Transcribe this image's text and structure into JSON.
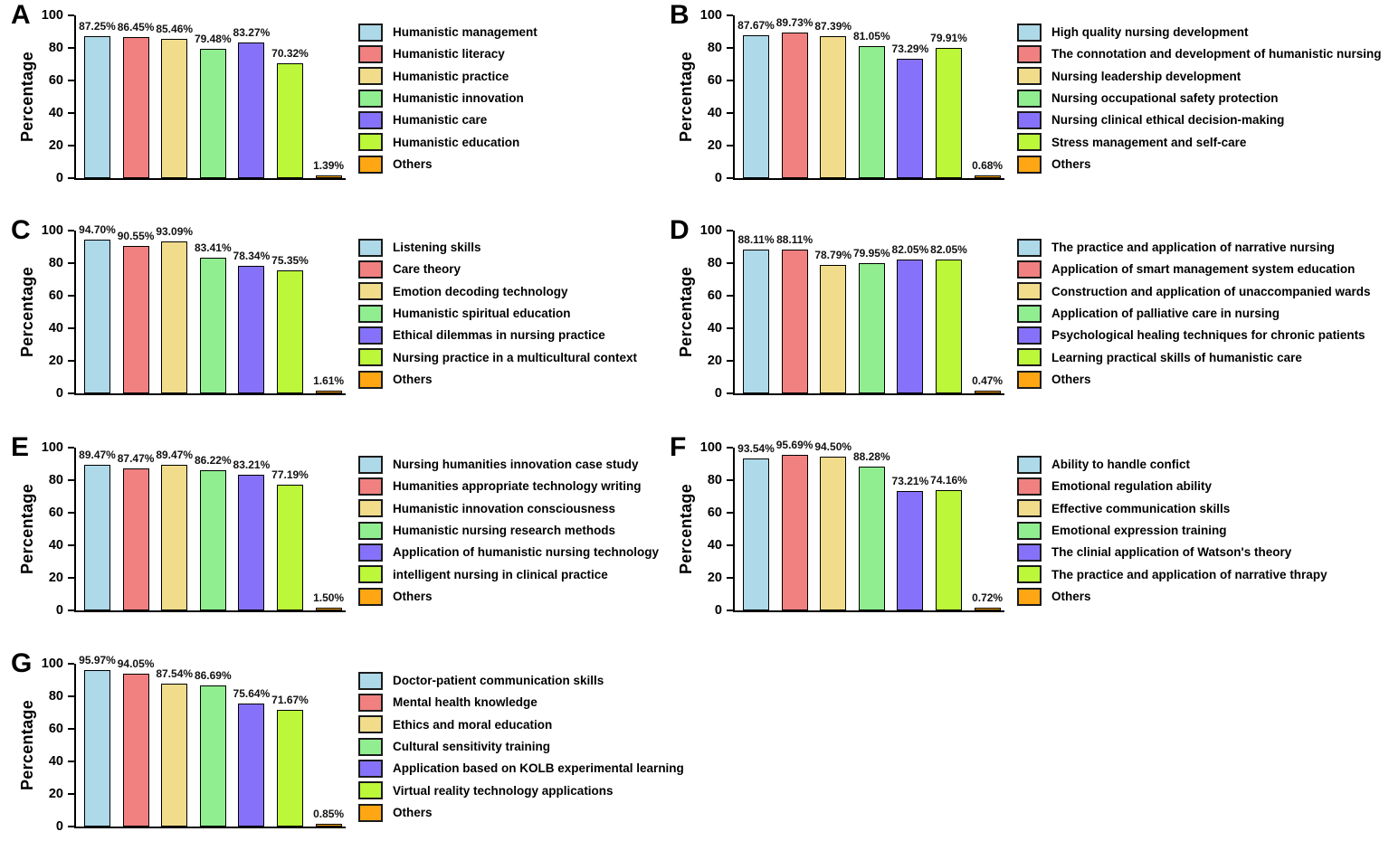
{
  "figure": {
    "ylabel": "Percentage",
    "yticks": [
      0,
      20,
      40,
      60,
      80,
      100
    ],
    "ylim": [
      0,
      100
    ],
    "legend_position": "right",
    "grid": "off"
  },
  "colors": {
    "series": [
      "#AED9E8",
      "#F18080",
      "#F0DC8B",
      "#90EE90",
      "#8672FA",
      "#BCF73A",
      "#FEA613"
    ],
    "bar_border": "#000000",
    "axis": "#000000",
    "text": "#000000",
    "background": "#FFFFFF"
  },
  "chart_data": [
    {
      "type": "bar",
      "panel": "A",
      "ylabel": "Percentage",
      "ylim": [
        0,
        100
      ],
      "categories": [
        "Humanistic management",
        "Humanistic literacy",
        "Humanistic practice",
        "Humanistic innovation",
        "Humanistic care",
        "Humanistic education",
        "Others"
      ],
      "values": [
        87.25,
        86.45,
        85.46,
        79.48,
        83.27,
        70.32,
        1.39
      ],
      "value_labels": [
        "87.25%",
        "86.45%",
        "85.46%",
        "79.48%",
        "83.27%",
        "70.32%",
        "1.39%"
      ]
    },
    {
      "type": "bar",
      "panel": "B",
      "ylabel": "Percentage",
      "ylim": [
        0,
        100
      ],
      "categories": [
        "High quality nursing development",
        "The connotation and development of humanistic nursing",
        "Nursing leadership development",
        "Nursing occupational safety protection",
        "Nursing clinical ethical decision-making",
        "Stress management and self-care",
        "Others"
      ],
      "values": [
        87.67,
        89.73,
        87.39,
        81.05,
        73.29,
        79.91,
        0.68
      ],
      "value_labels": [
        "87.67%",
        "89.73%",
        "87.39%",
        "81.05%",
        "73.29%",
        "79.91%",
        "0.68%"
      ]
    },
    {
      "type": "bar",
      "panel": "C",
      "ylabel": "Percentage",
      "ylim": [
        0,
        100
      ],
      "categories": [
        "Listening skills",
        "Care theory",
        "Emotion decoding technology",
        "Humanistic spiritual education",
        "Ethical dilemmas in nursing practice",
        "Nursing practice in a multicultural context",
        "Others"
      ],
      "values": [
        94.7,
        90.55,
        93.09,
        83.41,
        78.34,
        75.35,
        1.61
      ],
      "value_labels": [
        "94.70%",
        "90.55%",
        "93.09%",
        "83.41%",
        "78.34%",
        "75.35%",
        "1.61%"
      ]
    },
    {
      "type": "bar",
      "panel": "D",
      "ylabel": "Percentage",
      "ylim": [
        0,
        100
      ],
      "categories": [
        "The practice and application of narrative nursing",
        "Application of smart management system education",
        "Construction and application of unaccompanied wards",
        "Application of palliative care in nursing",
        "Psychological healing techniques for chronic patients",
        "Learning practical skills of humanistic care",
        "Others"
      ],
      "values": [
        88.11,
        88.11,
        78.79,
        79.95,
        82.05,
        82.05,
        0.47
      ],
      "value_labels": [
        "88.11%",
        "88.11%",
        "78.79%",
        "79.95%",
        "82.05%",
        "82.05%",
        "0.47%"
      ]
    },
    {
      "type": "bar",
      "panel": "E",
      "ylabel": "Percentage",
      "ylim": [
        0,
        100
      ],
      "categories": [
        "Nursing humanities innovation case study",
        "Humanities appropriate technology writing",
        "Humanistic innovation consciousness",
        "Humanistic nursing research methods",
        "Application of humanistic nursing technology",
        "intelligent nursing in clinical practice",
        "Others"
      ],
      "values": [
        89.47,
        87.47,
        89.47,
        86.22,
        83.21,
        77.19,
        1.5
      ],
      "value_labels": [
        "89.47%",
        "87.47%",
        "89.47%",
        "86.22%",
        "83.21%",
        "77.19%",
        "1.50%"
      ]
    },
    {
      "type": "bar",
      "panel": "F",
      "ylabel": "Percentage",
      "ylim": [
        0,
        100
      ],
      "categories": [
        "Ability to handle confict",
        "Emotional regulation ability",
        "Effective communication skills",
        "Emotional expression training",
        "The clinial application of Watson's theory",
        "The practice and application of narrative thrapy",
        "Others"
      ],
      "values": [
        93.54,
        95.69,
        94.5,
        88.28,
        73.21,
        74.16,
        0.72
      ],
      "value_labels": [
        "93.54%",
        "95.69%",
        "94.50%",
        "88.28%",
        "73.21%",
        "74.16%",
        "0.72%"
      ]
    },
    {
      "type": "bar",
      "panel": "G",
      "ylabel": "Percentage",
      "ylim": [
        0,
        100
      ],
      "categories": [
        "Doctor-patient communication skills",
        "Mental health knowledge",
        "Ethics and moral education",
        "Cultural sensitivity training",
        "Application based on KOLB experimental learning",
        "Virtual reality technology applications",
        "Others"
      ],
      "values": [
        95.97,
        94.05,
        87.54,
        86.69,
        75.64,
        71.67,
        0.85
      ],
      "value_labels": [
        "95.97%",
        "94.05%",
        "87.54%",
        "86.69%",
        "75.64%",
        "71.67%",
        "0.85%"
      ]
    }
  ]
}
